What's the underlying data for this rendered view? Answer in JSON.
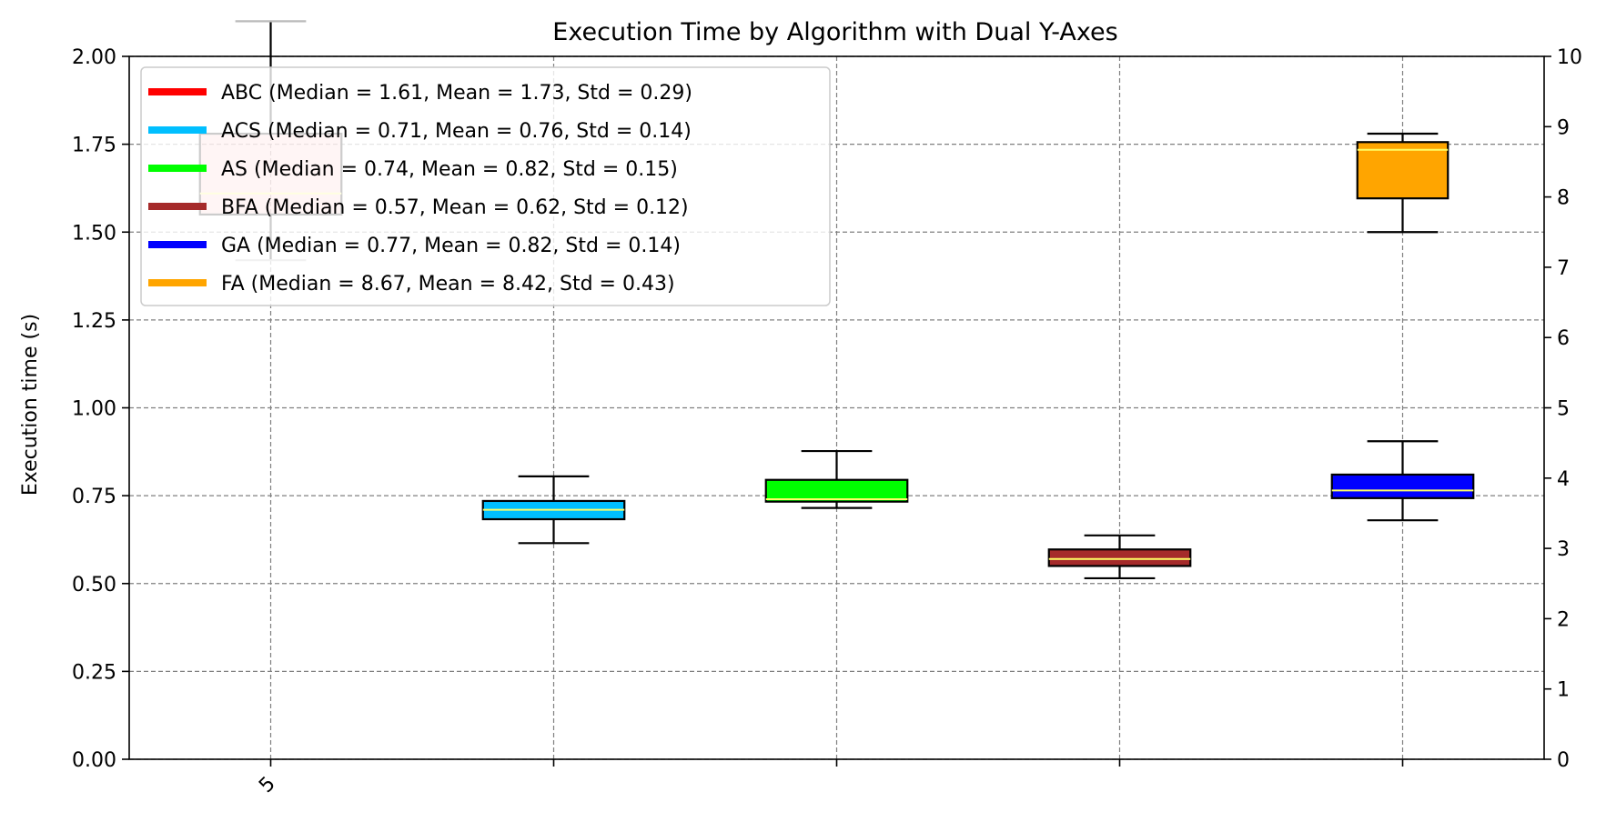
{
  "chart_data": {
    "type": "boxplot",
    "title": "Execution Time by Algorithm with Dual Y-Axes",
    "ylabel": "Execution time (s)",
    "ylim": [
      0,
      2
    ],
    "yticks": [
      "0.00",
      "0.25",
      "0.50",
      "0.75",
      "1.00",
      "1.25",
      "1.50",
      "1.75",
      "2.00"
    ],
    "y2lim": [
      0,
      10
    ],
    "y2ticks": [
      "0",
      "1",
      "2",
      "3",
      "4",
      "5",
      "6",
      "7",
      "8",
      "9",
      "10"
    ],
    "xticklabels": [
      "5",
      "",
      "",
      "",
      ""
    ],
    "grid": true,
    "legend_position": "upper-left",
    "series": [
      {
        "label": "ABC (Median = 1.61, Mean = 1.73, Std = 0.29)",
        "color": "#ff0000",
        "axis": "left",
        "position": 1,
        "whisker_low": 1.42,
        "q1": 1.55,
        "median": 1.61,
        "q3": 1.78,
        "whisker_high": 2.1,
        "box_alpha": 0.2
      },
      {
        "label": "ACS (Median = 0.71, Mean = 0.76, Std = 0.14)",
        "color": "#00bfff",
        "axis": "left",
        "position": 2,
        "whisker_low": 0.615,
        "q1": 0.683,
        "median": 0.71,
        "q3": 0.735,
        "whisker_high": 0.805
      },
      {
        "label": "AS (Median = 0.74, Mean = 0.82, Std = 0.15)",
        "color": "#00ff00",
        "axis": "left",
        "position": 3,
        "whisker_low": 0.715,
        "q1": 0.733,
        "median": 0.74,
        "q3": 0.795,
        "whisker_high": 0.877
      },
      {
        "label": "BFA (Median = 0.57, Mean = 0.62, Std = 0.12)",
        "color": "#a52a2a",
        "axis": "left",
        "position": 4,
        "whisker_low": 0.515,
        "q1": 0.55,
        "median": 0.57,
        "q3": 0.597,
        "whisker_high": 0.637
      },
      {
        "label": "GA (Median = 0.77, Mean = 0.82, Std = 0.14)",
        "color": "#0000ff",
        "axis": "left",
        "position": 5,
        "whisker_low": 0.68,
        "q1": 0.743,
        "median": 0.765,
        "q3": 0.81,
        "whisker_high": 0.905
      },
      {
        "label": "FA (Median = 8.67, Mean = 8.42, Std = 0.43)",
        "color": "#ffa500",
        "axis": "right",
        "position": 5,
        "whisker_low": 7.5,
        "q1": 7.98,
        "median": 8.67,
        "q3": 8.78,
        "whisker_high": 8.9
      }
    ]
  }
}
